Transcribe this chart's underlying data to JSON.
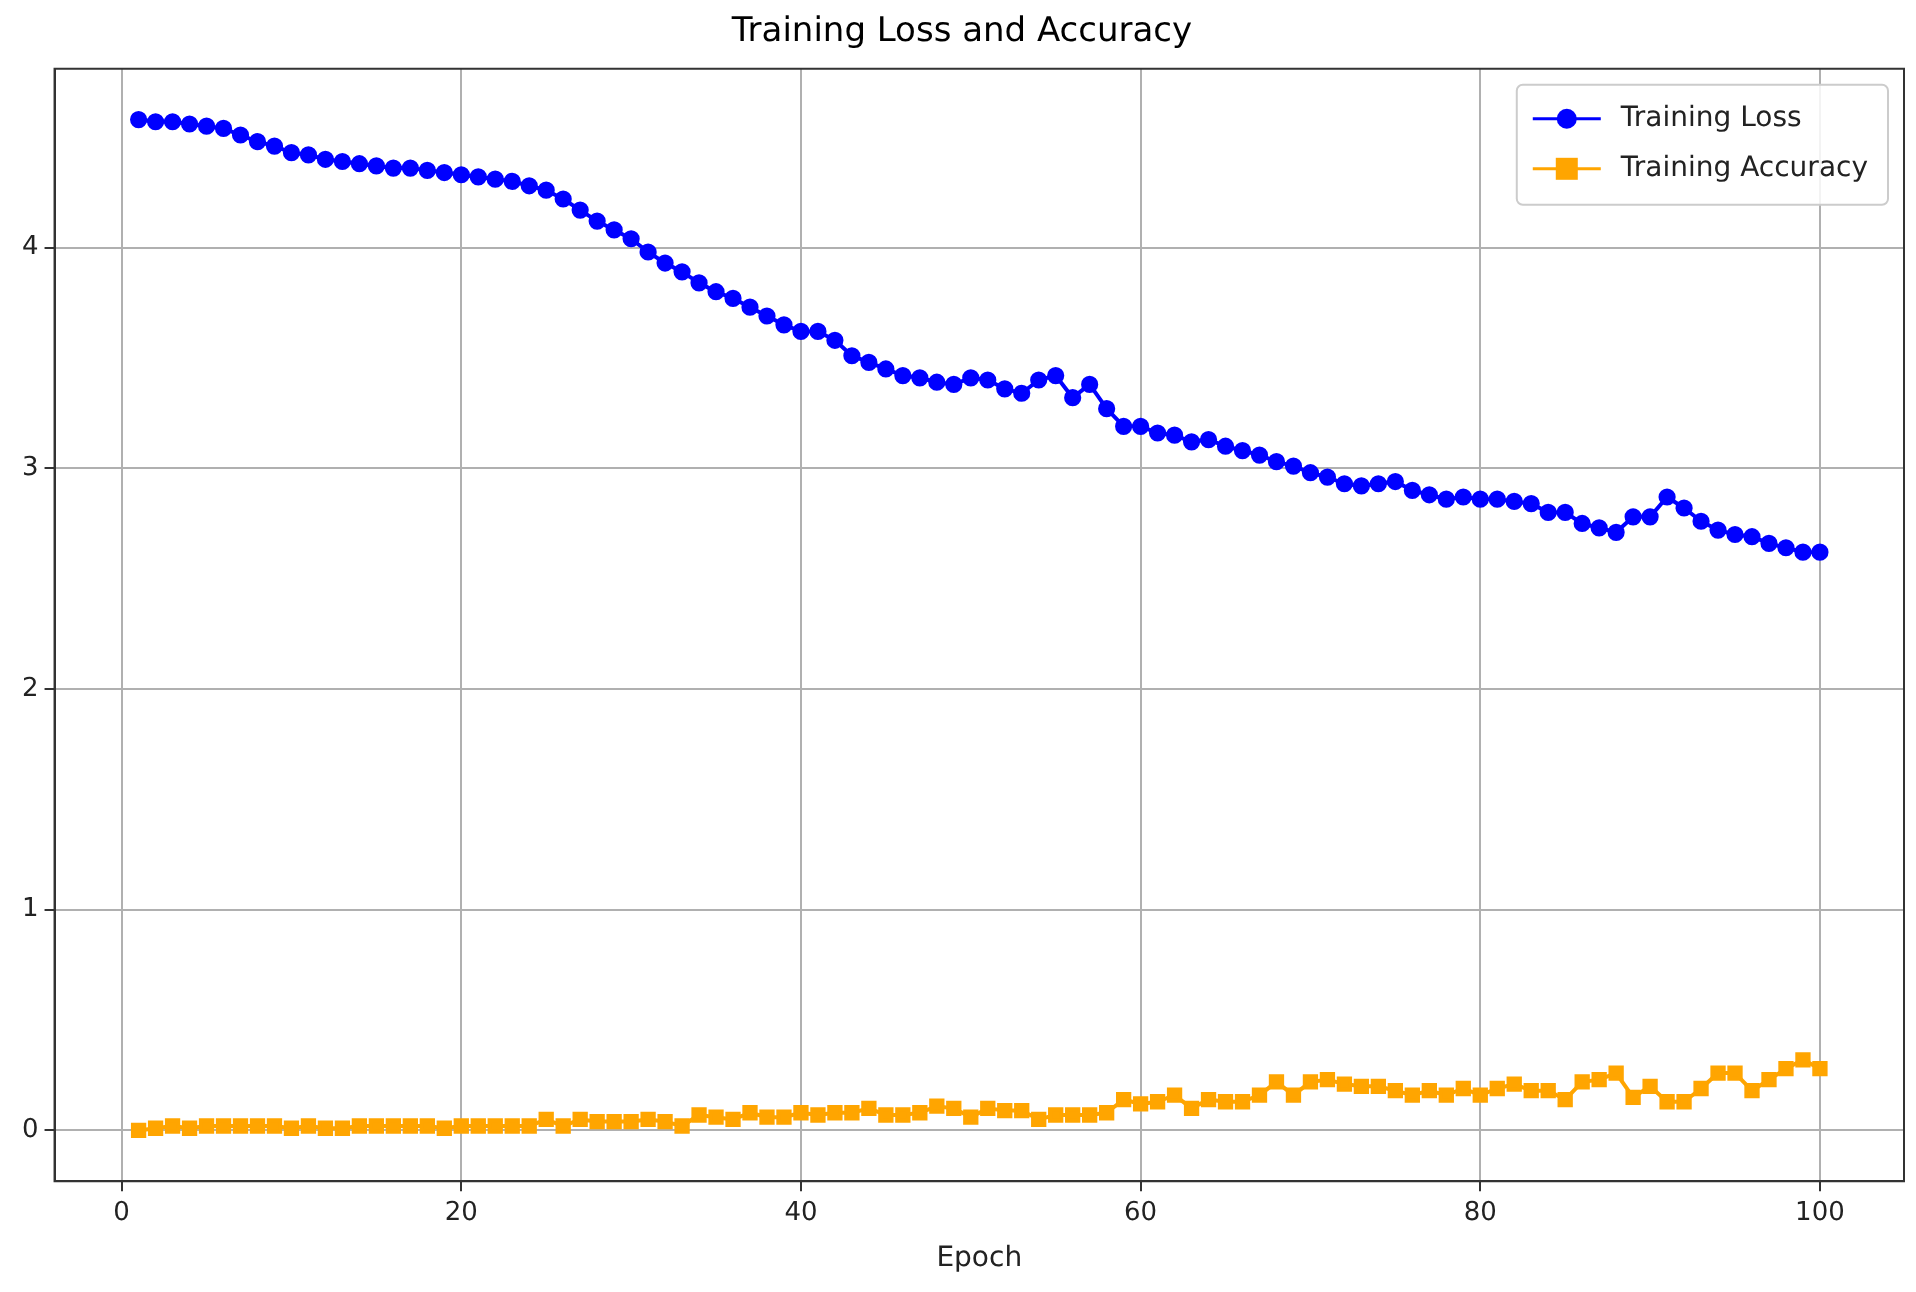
{
  "chart_data": {
    "type": "line",
    "title": "Training Loss and Accuracy",
    "xlabel": "Epoch",
    "x": [
      1,
      2,
      3,
      4,
      5,
      6,
      7,
      8,
      9,
      10,
      11,
      12,
      13,
      14,
      15,
      16,
      17,
      18,
      19,
      20,
      21,
      22,
      23,
      24,
      25,
      26,
      27,
      28,
      29,
      30,
      31,
      32,
      33,
      34,
      35,
      36,
      37,
      38,
      39,
      40,
      41,
      42,
      43,
      44,
      45,
      46,
      47,
      48,
      49,
      50,
      51,
      52,
      53,
      54,
      55,
      56,
      57,
      58,
      59,
      60,
      61,
      62,
      63,
      64,
      65,
      66,
      67,
      68,
      69,
      70,
      71,
      72,
      73,
      74,
      75,
      76,
      77,
      78,
      79,
      80,
      81,
      82,
      83,
      84,
      85,
      86,
      87,
      88,
      89,
      90,
      91,
      92,
      93,
      94,
      95,
      96,
      97,
      98,
      99,
      100
    ],
    "series": [
      {
        "name": "Training Loss",
        "color": "#0000ff",
        "marker": "circle",
        "values": [
          4.58,
          4.57,
          4.57,
          4.56,
          4.55,
          4.54,
          4.51,
          4.48,
          4.46,
          4.43,
          4.42,
          4.4,
          4.39,
          4.38,
          4.37,
          4.36,
          4.36,
          4.35,
          4.34,
          4.33,
          4.32,
          4.31,
          4.3,
          4.28,
          4.26,
          4.22,
          4.17,
          4.12,
          4.08,
          4.04,
          3.98,
          3.93,
          3.89,
          3.84,
          3.8,
          3.77,
          3.73,
          3.69,
          3.65,
          3.62,
          3.62,
          3.58,
          3.51,
          3.48,
          3.45,
          3.42,
          3.41,
          3.39,
          3.38,
          3.41,
          3.4,
          3.36,
          3.34,
          3.4,
          3.42,
          3.32,
          3.38,
          3.27,
          3.19,
          3.19,
          3.16,
          3.15,
          3.12,
          3.13,
          3.1,
          3.08,
          3.06,
          3.03,
          3.01,
          2.98,
          2.96,
          2.93,
          2.92,
          2.93,
          2.94,
          2.9,
          2.88,
          2.86,
          2.87,
          2.86,
          2.86,
          2.85,
          2.84,
          2.8,
          2.8,
          2.75,
          2.73,
          2.71,
          2.78,
          2.78,
          2.87,
          2.82,
          2.76,
          2.72,
          2.7,
          2.69,
          2.66,
          2.64,
          2.62,
          2.62
        ]
      },
      {
        "name": "Training Accuracy",
        "color": "#ffa500",
        "marker": "square",
        "values": [
          0.0,
          0.01,
          0.02,
          0.01,
          0.02,
          0.02,
          0.02,
          0.02,
          0.02,
          0.01,
          0.02,
          0.01,
          0.01,
          0.02,
          0.02,
          0.02,
          0.02,
          0.02,
          0.01,
          0.02,
          0.02,
          0.02,
          0.02,
          0.02,
          0.05,
          0.02,
          0.05,
          0.04,
          0.04,
          0.04,
          0.05,
          0.04,
          0.02,
          0.07,
          0.06,
          0.05,
          0.08,
          0.06,
          0.06,
          0.08,
          0.07,
          0.08,
          0.08,
          0.1,
          0.07,
          0.07,
          0.08,
          0.11,
          0.1,
          0.06,
          0.1,
          0.09,
          0.09,
          0.05,
          0.07,
          0.07,
          0.07,
          0.08,
          0.14,
          0.12,
          0.13,
          0.16,
          0.1,
          0.14,
          0.13,
          0.13,
          0.16,
          0.22,
          0.16,
          0.22,
          0.23,
          0.21,
          0.2,
          0.2,
          0.18,
          0.16,
          0.18,
          0.16,
          0.19,
          0.16,
          0.19,
          0.21,
          0.18,
          0.18,
          0.14,
          0.22,
          0.23,
          0.26,
          0.15,
          0.2,
          0.13,
          0.13,
          0.19,
          0.26,
          0.26,
          0.18,
          0.23,
          0.28,
          0.32,
          0.28
        ]
      }
    ],
    "xlim": [
      -3.95,
      104.95
    ],
    "xticks": [
      0,
      20,
      40,
      60,
      80,
      100
    ],
    "ylim": [
      -0.23,
      4.81
    ],
    "yticks": [
      0,
      1,
      2,
      3,
      4
    ],
    "grid": true,
    "legend": "top right"
  }
}
